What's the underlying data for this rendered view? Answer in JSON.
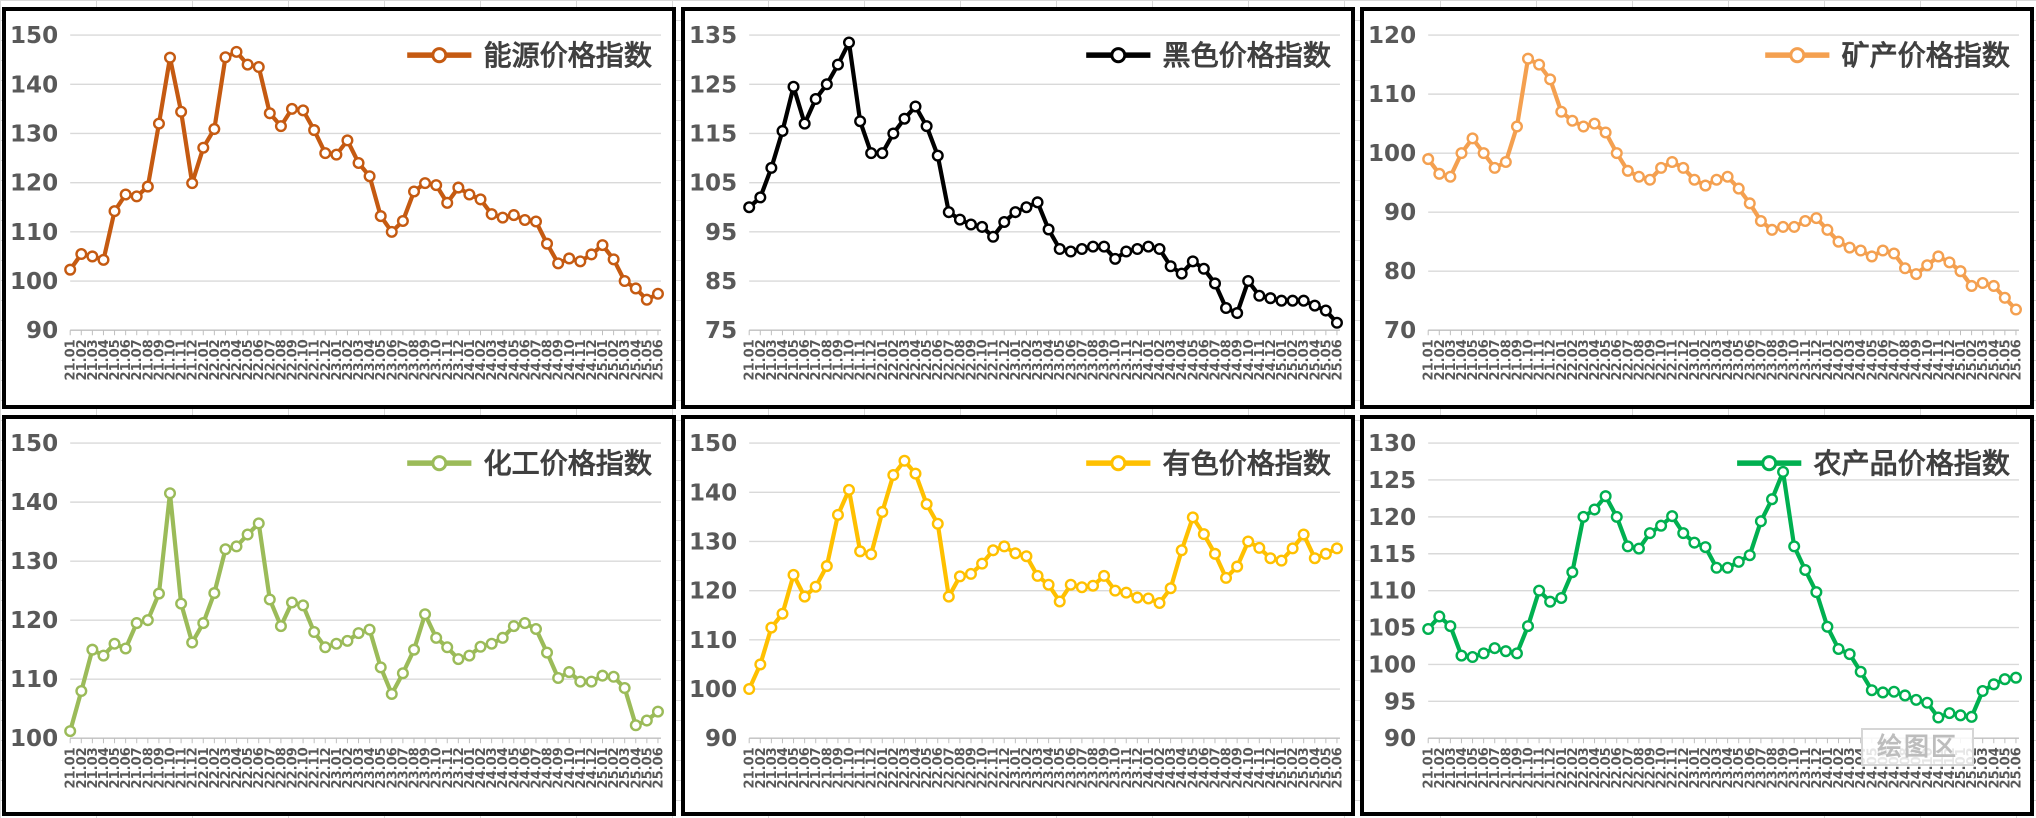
{
  "page": {
    "background_color": "#ffffff",
    "spreadsheet_gridline_color": "#d9d9d9",
    "tile_border_color": "#000000",
    "plot_gridline_color": "#d9d9d9",
    "axis_line_color": "#bfbfbf",
    "tick_label_color": "#595959",
    "legend_text_color": "#404040"
  },
  "chart_data": [
    {
      "type": "line",
      "legend": "能源价格指数",
      "color": "#C55A11",
      "marker": "open-circle",
      "grid": true,
      "legend_position": "top-right",
      "ylim": [
        90,
        150
      ],
      "ytick_step": 10,
      "categories": [
        "21.01",
        "21.02",
        "21.03",
        "21.04",
        "21.05",
        "21.06",
        "21.07",
        "21.08",
        "21.09",
        "21.10",
        "21.11",
        "21.12",
        "22.01",
        "22.02",
        "22.03",
        "22.04",
        "22.05",
        "22.06",
        "22.07",
        "22.08",
        "22.09",
        "22.10",
        "22.11",
        "22.12",
        "23.01",
        "23.02",
        "23.03",
        "23.04",
        "23.05",
        "23.06",
        "23.07",
        "23.08",
        "23.09",
        "23.10",
        "23.11",
        "23.12",
        "24.01",
        "24.02",
        "24.03",
        "24.04",
        "24.05",
        "24.06",
        "24.07",
        "24.08",
        "24.09",
        "24.10",
        "24.11",
        "24.12",
        "25.01",
        "25.02",
        "25.03",
        "25.04",
        "25.05",
        "25.06"
      ],
      "values": [
        102.3,
        105.5,
        105.0,
        104.3,
        114.2,
        117.6,
        117.2,
        119.2,
        132.0,
        145.4,
        134.4,
        119.9,
        127.1,
        130.9,
        145.5,
        146.6,
        144.0,
        143.5,
        134.1,
        131.5,
        135.0,
        134.7,
        130.7,
        126.0,
        125.7,
        128.6,
        124.0,
        121.3,
        113.2,
        110.0,
        112.2,
        118.2,
        119.9,
        119.5,
        115.9,
        119.0,
        117.6,
        116.6,
        113.6,
        112.9,
        113.4,
        112.4,
        112.1,
        107.6,
        103.6,
        104.6,
        104.0,
        105.4,
        107.3,
        104.4,
        100.0,
        98.5,
        96.2,
        97.4
      ]
    },
    {
      "type": "line",
      "legend": "黑色价格指数",
      "color": "#000000",
      "marker": "open-circle",
      "grid": true,
      "legend_position": "top-right",
      "ylim": [
        75,
        135
      ],
      "ytick_step": 10,
      "categories": [
        "21.01",
        "21.02",
        "21.03",
        "21.04",
        "21.05",
        "21.06",
        "21.07",
        "21.08",
        "21.09",
        "21.10",
        "21.11",
        "21.12",
        "22.01",
        "22.02",
        "22.03",
        "22.04",
        "22.05",
        "22.06",
        "22.07",
        "22.08",
        "22.09",
        "22.10",
        "22.11",
        "22.12",
        "23.01",
        "23.02",
        "23.03",
        "23.04",
        "23.05",
        "23.06",
        "23.07",
        "23.08",
        "23.09",
        "23.10",
        "23.11",
        "23.12",
        "24.01",
        "24.02",
        "24.03",
        "24.04",
        "24.05",
        "24.06",
        "24.07",
        "24.08",
        "24.09",
        "24.10",
        "24.11",
        "24.12",
        "25.01",
        "25.02",
        "25.03",
        "25.04",
        "25.05",
        "25.06"
      ],
      "values": [
        100.0,
        102.0,
        108.0,
        115.5,
        124.5,
        117.0,
        122.0,
        125.0,
        129.0,
        133.5,
        117.5,
        111.0,
        111.0,
        115.0,
        118.0,
        120.5,
        116.5,
        110.5,
        99.0,
        97.5,
        96.5,
        96.0,
        94.0,
        97.0,
        99.0,
        100.0,
        101.0,
        95.5,
        91.5,
        91.0,
        91.5,
        92.0,
        92.0,
        89.5,
        91.0,
        91.5,
        92.0,
        91.5,
        88.0,
        86.5,
        89.0,
        87.5,
        84.5,
        79.5,
        78.5,
        85.0,
        82.0,
        81.5,
        81.0,
        81.0,
        81.0,
        80.0,
        79.0,
        76.5
      ]
    },
    {
      "type": "line",
      "legend": "矿产价格指数",
      "color": "#F4A050",
      "marker": "open-circle",
      "grid": true,
      "legend_position": "top-right",
      "ylim": [
        70,
        120
      ],
      "ytick_step": 10,
      "categories": [
        "21.01",
        "21.02",
        "21.03",
        "21.04",
        "21.05",
        "21.06",
        "21.07",
        "21.08",
        "21.09",
        "21.10",
        "21.11",
        "21.12",
        "22.01",
        "22.02",
        "22.03",
        "22.04",
        "22.05",
        "22.06",
        "22.07",
        "22.08",
        "22.09",
        "22.10",
        "22.11",
        "22.12",
        "23.01",
        "23.02",
        "23.03",
        "23.04",
        "23.05",
        "23.06",
        "23.07",
        "23.08",
        "23.09",
        "23.10",
        "23.11",
        "23.12",
        "24.01",
        "24.02",
        "24.03",
        "24.04",
        "24.05",
        "24.06",
        "24.07",
        "24.08",
        "24.09",
        "24.10",
        "24.11",
        "24.12",
        "25.01",
        "25.02",
        "25.03",
        "25.04",
        "25.05",
        "25.06"
      ],
      "values": [
        99.0,
        96.5,
        96.0,
        100.0,
        102.5,
        100.0,
        97.5,
        98.5,
        104.5,
        116.0,
        115.0,
        112.5,
        107.0,
        105.5,
        104.5,
        105.0,
        103.5,
        100.0,
        97.0,
        96.0,
        95.5,
        97.5,
        98.5,
        97.5,
        95.5,
        94.5,
        95.5,
        96.0,
        94.0,
        91.5,
        88.5,
        87.0,
        87.5,
        87.5,
        88.5,
        89.0,
        87.0,
        85.0,
        84.0,
        83.5,
        82.5,
        83.5,
        83.0,
        80.5,
        79.5,
        81.0,
        82.5,
        81.5,
        80.0,
        77.5,
        78.0,
        77.5,
        75.5,
        73.5
      ]
    },
    {
      "type": "line",
      "legend": "化工价格指数",
      "color": "#9BBB59",
      "marker": "open-circle",
      "grid": true,
      "legend_position": "top-right",
      "ylim": [
        100,
        150
      ],
      "ytick_step": 10,
      "categories": [
        "21.01",
        "21.02",
        "21.03",
        "21.04",
        "21.05",
        "21.06",
        "21.07",
        "21.08",
        "21.09",
        "21.10",
        "21.11",
        "21.12",
        "22.01",
        "22.02",
        "22.03",
        "22.04",
        "22.05",
        "22.06",
        "22.07",
        "22.08",
        "22.09",
        "22.10",
        "22.11",
        "22.12",
        "23.01",
        "23.02",
        "23.03",
        "23.04",
        "23.05",
        "23.06",
        "23.07",
        "23.08",
        "23.09",
        "23.10",
        "23.11",
        "23.12",
        "24.01",
        "24.02",
        "24.03",
        "24.04",
        "24.05",
        "24.06",
        "24.07",
        "24.08",
        "24.09",
        "24.10",
        "24.11",
        "24.12",
        "25.01",
        "25.02",
        "25.03",
        "25.04",
        "25.05",
        "25.06"
      ],
      "values": [
        101.2,
        108.0,
        115.0,
        114.0,
        116.0,
        115.2,
        119.5,
        120.0,
        124.5,
        141.5,
        122.8,
        116.2,
        119.5,
        124.6,
        132.0,
        132.5,
        134.5,
        136.4,
        123.5,
        119.0,
        123.0,
        122.5,
        118.0,
        115.4,
        116.0,
        116.5,
        117.8,
        118.4,
        112.0,
        107.5,
        111.0,
        115.0,
        121.0,
        117.0,
        115.4,
        113.4,
        114.0,
        115.5,
        116.0,
        117.0,
        119.0,
        119.5,
        118.5,
        114.5,
        110.2,
        111.2,
        109.6,
        109.6,
        110.6,
        110.4,
        108.5,
        102.2,
        103.0,
        104.5
      ]
    },
    {
      "type": "line",
      "legend": "有色价格指数",
      "color": "#FFC000",
      "marker": "open-circle",
      "grid": true,
      "legend_position": "top-right",
      "ylim": [
        90,
        150
      ],
      "ytick_step": 10,
      "categories": [
        "21.01",
        "21.02",
        "21.03",
        "21.04",
        "21.05",
        "21.06",
        "21.07",
        "21.08",
        "21.09",
        "21.10",
        "21.11",
        "21.12",
        "22.01",
        "22.02",
        "22.03",
        "22.04",
        "22.05",
        "22.06",
        "22.07",
        "22.08",
        "22.09",
        "22.10",
        "22.11",
        "22.12",
        "23.01",
        "23.02",
        "23.03",
        "23.04",
        "23.05",
        "23.06",
        "23.07",
        "23.08",
        "23.09",
        "23.10",
        "23.11",
        "23.12",
        "24.01",
        "24.02",
        "24.03",
        "24.04",
        "24.05",
        "24.06",
        "24.07",
        "24.08",
        "24.09",
        "24.10",
        "24.11",
        "24.12",
        "25.01",
        "25.02",
        "25.03",
        "25.04",
        "25.05",
        "25.06"
      ],
      "values": [
        100.0,
        105.0,
        112.5,
        115.3,
        123.2,
        118.8,
        120.8,
        125.0,
        135.4,
        140.5,
        128.0,
        127.4,
        136.0,
        143.5,
        146.4,
        143.8,
        137.6,
        133.6,
        118.8,
        122.9,
        123.4,
        125.5,
        128.2,
        129.0,
        127.6,
        127.0,
        123.0,
        121.2,
        117.8,
        121.2,
        120.7,
        121.0,
        123.0,
        120.0,
        119.6,
        118.6,
        118.4,
        117.5,
        120.5,
        128.2,
        134.9,
        131.5,
        127.5,
        122.6,
        124.9,
        130.0,
        128.7,
        126.6,
        126.1,
        128.6,
        131.4,
        126.6,
        127.5,
        128.6
      ]
    },
    {
      "type": "line",
      "legend": "农产品价格指数",
      "color": "#00B050",
      "marker": "open-circle",
      "grid": true,
      "legend_position": "top-right",
      "watermark": "绘图区",
      "ylim": [
        90,
        130
      ],
      "ytick_step": 5,
      "categories": [
        "21.01",
        "21.02",
        "21.03",
        "21.04",
        "21.05",
        "21.06",
        "21.07",
        "21.08",
        "21.09",
        "21.10",
        "21.11",
        "21.12",
        "22.01",
        "22.02",
        "22.03",
        "22.04",
        "22.05",
        "22.06",
        "22.07",
        "22.08",
        "22.09",
        "22.10",
        "22.11",
        "22.12",
        "23.01",
        "23.02",
        "23.03",
        "23.04",
        "23.05",
        "23.06",
        "23.07",
        "23.08",
        "23.09",
        "23.10",
        "23.11",
        "23.12",
        "24.01",
        "24.02",
        "24.03",
        "24.04",
        "24.05",
        "24.06",
        "24.07",
        "24.08",
        "24.09",
        "24.10",
        "24.11",
        "24.12",
        "25.01",
        "25.02",
        "25.03",
        "25.04",
        "25.05",
        "25.06"
      ],
      "values": [
        104.8,
        106.5,
        105.2,
        101.2,
        101.0,
        101.5,
        102.2,
        101.8,
        101.5,
        105.2,
        110.0,
        108.5,
        109.0,
        112.5,
        120.0,
        121.0,
        122.8,
        120.0,
        116.0,
        115.7,
        117.8,
        118.8,
        120.1,
        117.8,
        116.5,
        115.9,
        113.1,
        113.1,
        113.9,
        114.8,
        119.4,
        122.4,
        126.1,
        116.0,
        112.8,
        109.8,
        105.1,
        102.1,
        101.4,
        99.0,
        96.5,
        96.2,
        96.3,
        95.8,
        95.2,
        94.8,
        92.8,
        93.4,
        93.1,
        92.9,
        96.4,
        97.3,
        98.0,
        98.2
      ]
    }
  ]
}
